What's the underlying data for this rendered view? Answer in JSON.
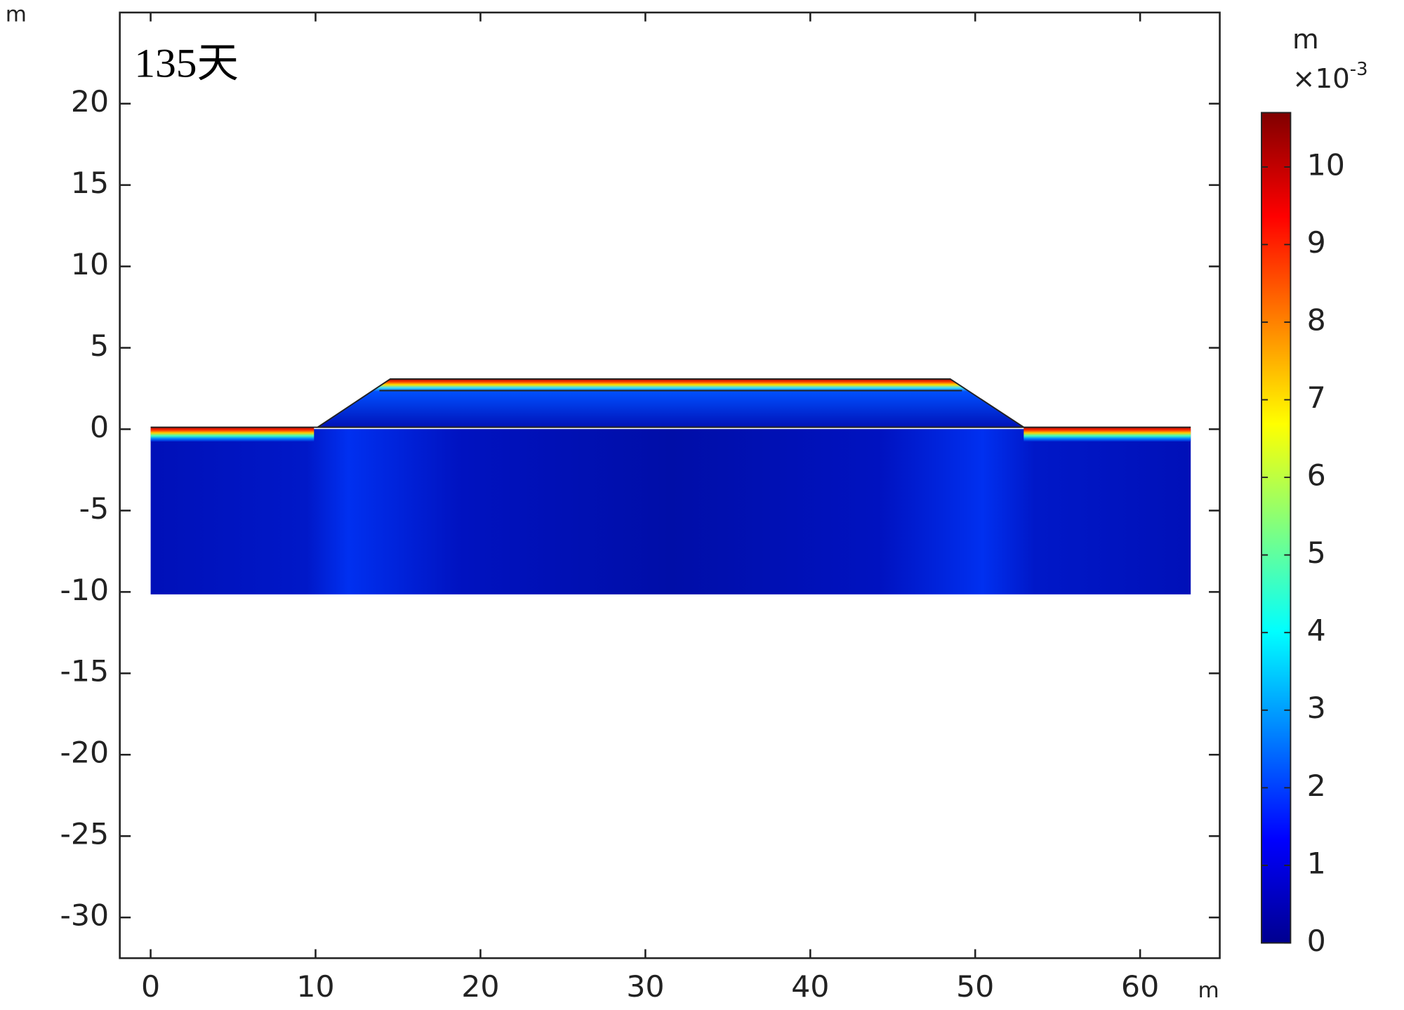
{
  "chart_data": {
    "type": "contour",
    "title": "135天",
    "x_unit": "m",
    "y_unit": "m",
    "xlim": [
      -1.87,
      64.83
    ],
    "xticks": [
      0,
      10,
      20,
      30,
      40,
      50,
      60
    ],
    "ylim": [
      -32.5,
      25.6
    ],
    "yticks": [
      20,
      15,
      10,
      5,
      0,
      -5,
      -10,
      -15,
      -20,
      -25,
      -30
    ],
    "colormap": "jet",
    "colorbar_unit": "m",
    "colorbar_scale": "×10",
    "colorbar_exponent": "-3",
    "clim": [
      0,
      10.7
    ],
    "cticks": [
      0,
      1,
      2,
      3,
      4,
      5,
      6,
      7,
      8,
      9,
      10
    ]
  }
}
